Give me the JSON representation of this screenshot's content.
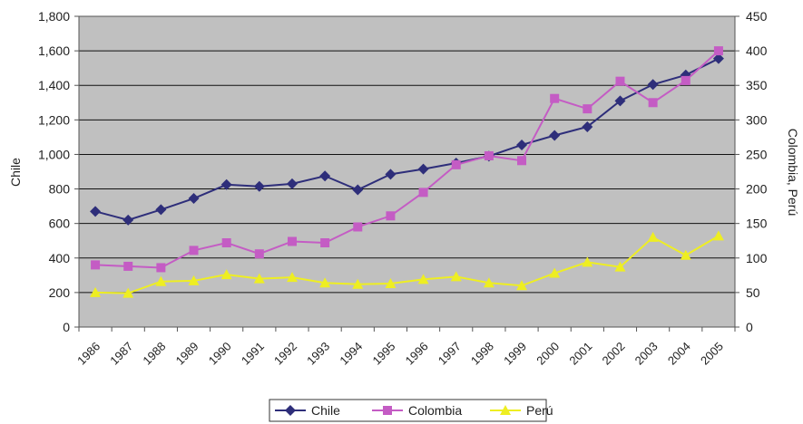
{
  "chart_data": {
    "type": "line",
    "title": "",
    "x": [
      "1986",
      "1987",
      "1988",
      "1989",
      "1990",
      "1991",
      "1992",
      "1993",
      "1994",
      "1995",
      "1996",
      "1997",
      "1998",
      "1999",
      "2000",
      "2001",
      "2002",
      "2003",
      "2004",
      "2005"
    ],
    "y_left": {
      "label": "Chile",
      "range": [
        0,
        1800
      ],
      "ticks": [
        "0",
        "200",
        "400",
        "600",
        "800",
        "1,000",
        "1,200",
        "1,400",
        "1,600",
        "1,800"
      ]
    },
    "y_right": {
      "label": "Colombia, Perú",
      "range": [
        0,
        450
      ],
      "ticks": [
        "0",
        "50",
        "100",
        "150",
        "200",
        "250",
        "300",
        "350",
        "400",
        "450"
      ]
    },
    "grid": true,
    "legend_placement": "bottom",
    "plot_background": "#c0c0c0",
    "series": [
      {
        "name": "Chile",
        "axis": "left",
        "color": "#2e2e7a",
        "marker": "diamond",
        "values": [
          670,
          620,
          680,
          745,
          825,
          815,
          830,
          875,
          795,
          885,
          915,
          950,
          990,
          1055,
          1110,
          1160,
          1310,
          1405,
          1460,
          1555
        ]
      },
      {
        "name": "Colombia",
        "axis": "right",
        "color": "#c45cc4",
        "marker": "square",
        "values": [
          90,
          88,
          86,
          111,
          122,
          106,
          124,
          122,
          145,
          161,
          195,
          235,
          248,
          241,
          331,
          316,
          356,
          325,
          357,
          400
        ]
      },
      {
        "name": "Perú",
        "axis": "right",
        "color": "#eeee22",
        "marker": "triangle",
        "values": [
          50,
          49,
          66,
          67,
          76,
          70,
          72,
          64,
          62,
          63,
          69,
          73,
          64,
          60,
          78,
          94,
          87,
          130,
          104,
          132
        ]
      }
    ]
  }
}
